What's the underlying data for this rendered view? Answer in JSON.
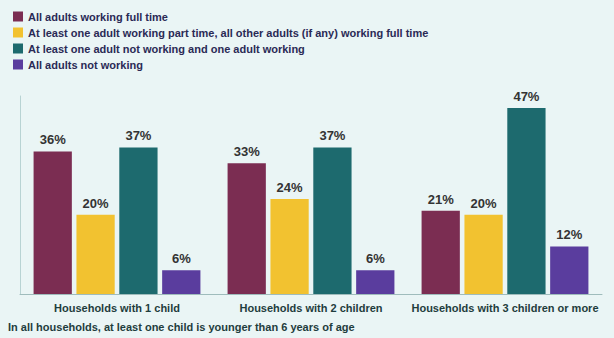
{
  "chart_data": {
    "type": "bar",
    "categories": [
      "Households with 1 child",
      "Households with 2 children",
      "Households with 3 children or more"
    ],
    "series": [
      {
        "name": "All adults working full time",
        "color": "#7b2d52",
        "values": [
          36,
          33,
          21
        ],
        "value_labels": [
          "36%",
          "33%",
          "21%"
        ]
      },
      {
        "name": "At least one adult working part time, all other adults (if any) working full time",
        "color": "#f2c230",
        "values": [
          20,
          24,
          20
        ],
        "value_labels": [
          "20%",
          "24%",
          "20%"
        ]
      },
      {
        "name": "At least one adult not working and one adult working",
        "color": "#1d6a6e",
        "values": [
          37,
          37,
          47
        ],
        "value_labels": [
          "37%",
          "37%",
          "47%"
        ]
      },
      {
        "name": "All adults not working",
        "color": "#5a3d9e",
        "values": [
          6,
          6,
          12
        ],
        "value_labels": [
          "6%",
          "6%",
          "12%"
        ]
      }
    ],
    "ylim": [
      0,
      50
    ],
    "data_labels": true,
    "tick_labels": "x",
    "grid": false,
    "legend": "top-left",
    "annotations": [
      "In all households, at least one child is younger than 6 years of age"
    ]
  }
}
